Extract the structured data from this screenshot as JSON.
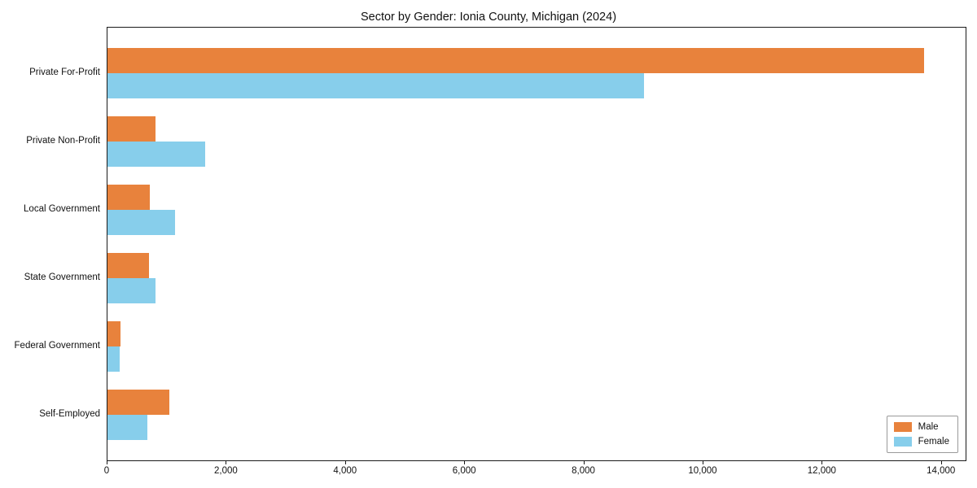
{
  "chart_data": {
    "type": "bar",
    "orientation": "horizontal",
    "title": "Sector by Gender: Ionia County, Michigan (2024)",
    "categories": [
      "Private For-Profit",
      "Private Non-Profit",
      "Local Government",
      "State Government",
      "Federal Government",
      "Self-Employed"
    ],
    "series": [
      {
        "name": "Male",
        "color": "#E8823C",
        "values": [
          13700,
          800,
          710,
          690,
          220,
          1040
        ]
      },
      {
        "name": "Female",
        "color": "#87CEEB",
        "values": [
          9000,
          1640,
          1140,
          800,
          200,
          670
        ]
      }
    ],
    "xlim": [
      0,
      14400
    ],
    "x_ticks": [
      {
        "value": 0,
        "label": "0"
      },
      {
        "value": 2000,
        "label": "2,000"
      },
      {
        "value": 4000,
        "label": "4,000"
      },
      {
        "value": 6000,
        "label": "6,000"
      },
      {
        "value": 8000,
        "label": "8,000"
      },
      {
        "value": 10000,
        "label": "10,000"
      },
      {
        "value": 12000,
        "label": "12,000"
      },
      {
        "value": 14000,
        "label": "14,000"
      }
    ],
    "grid": false,
    "legend_position": "lower right",
    "xlabel": "",
    "ylabel": ""
  }
}
